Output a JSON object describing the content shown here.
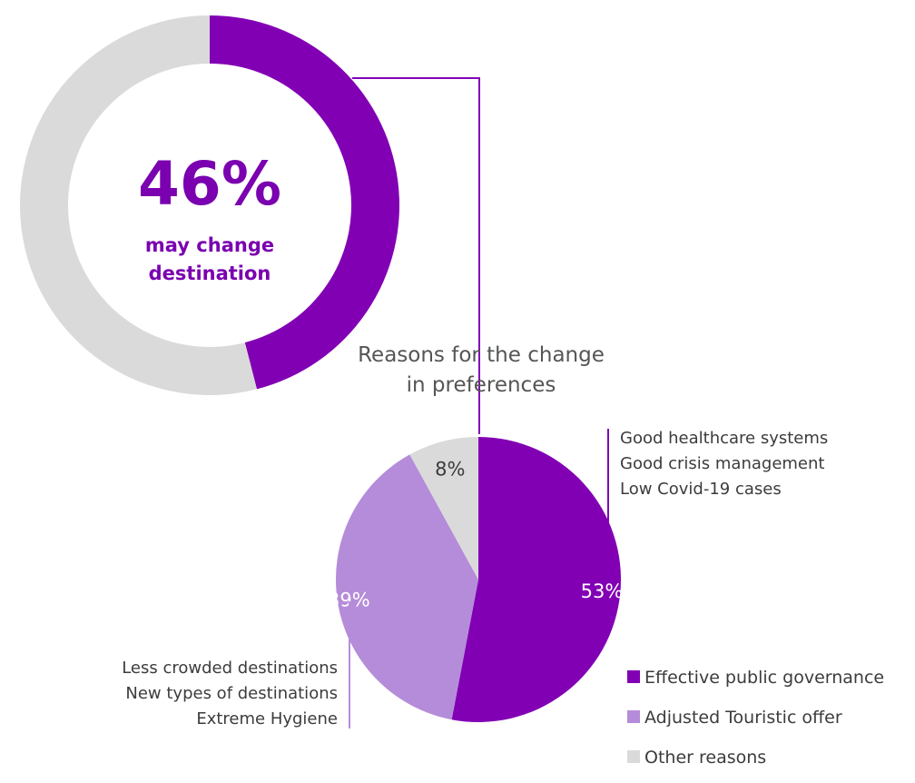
{
  "colors": {
    "accent": "#8200b4",
    "light_purple": "#b58cd9",
    "grey": "#dadada",
    "text": "#3c3c3c"
  },
  "chart_data": [
    {
      "type": "donut",
      "center_value": "46%",
      "center_text": [
        "may change",
        "destination"
      ],
      "slices": [
        {
          "label": "may change destination",
          "value": 46,
          "color": "#8200b4"
        },
        {
          "label": "",
          "value": 54,
          "color": "#dadada"
        }
      ]
    },
    {
      "type": "pie",
      "title": [
        "Reasons for the change",
        "in preferences"
      ],
      "slices": [
        {
          "label": "Effective public governance",
          "value": 53,
          "display": "53%",
          "color": "#8200b4",
          "reasons": [
            "Good healthcare systems",
            "Good crisis management",
            "Low Covid-19 cases"
          ]
        },
        {
          "label": "Adjusted Touristic offer",
          "value": 39,
          "display": "39%",
          "color": "#b58cd9",
          "reasons": [
            "Less crowded destinations",
            "New types of destinations",
            "Extreme Hygiene"
          ]
        },
        {
          "label": "Other reasons",
          "value": 8,
          "display": "8%",
          "color": "#dadada",
          "reasons": []
        }
      ],
      "legend_position": "bottom-right"
    }
  ]
}
